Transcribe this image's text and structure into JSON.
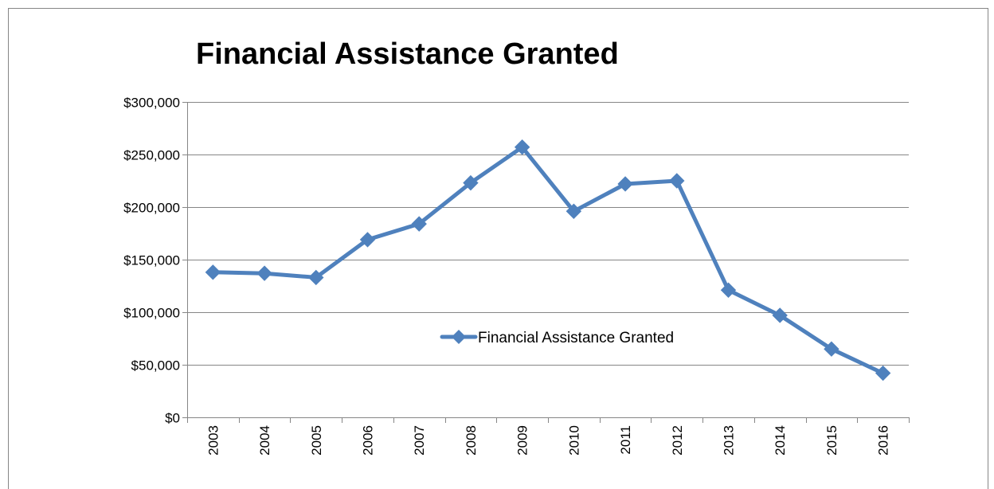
{
  "chart_data": {
    "type": "line",
    "title": "Financial Assistance Granted",
    "xlabel": "",
    "ylabel": "",
    "categories": [
      "2003",
      "2004",
      "2005",
      "2006",
      "2007",
      "2008",
      "2009",
      "2010",
      "2011",
      "2012",
      "2013",
      "2014",
      "2015",
      "2016"
    ],
    "series": [
      {
        "name": "Financial Assistance Granted",
        "values": [
          138000,
          137000,
          133000,
          169000,
          184000,
          223000,
          257000,
          196000,
          222000,
          225000,
          121000,
          97000,
          65000,
          42000
        ],
        "color": "#4f81bd",
        "marker": "diamond"
      }
    ],
    "ylim": [
      0,
      300000
    ],
    "y_ticks": [
      0,
      50000,
      100000,
      150000,
      200000,
      250000,
      300000
    ],
    "y_tick_labels": [
      "$0",
      "$50,000",
      "$100,000",
      "$150,000",
      "$200,000",
      "$250,000",
      "$300,000"
    ],
    "x_tick_rotation": -90,
    "grid": true,
    "legend_position": "inside-center"
  },
  "colors": {
    "series": "#4f81bd",
    "grid": "#868686",
    "axis": "#868686",
    "frame": "#868686"
  }
}
